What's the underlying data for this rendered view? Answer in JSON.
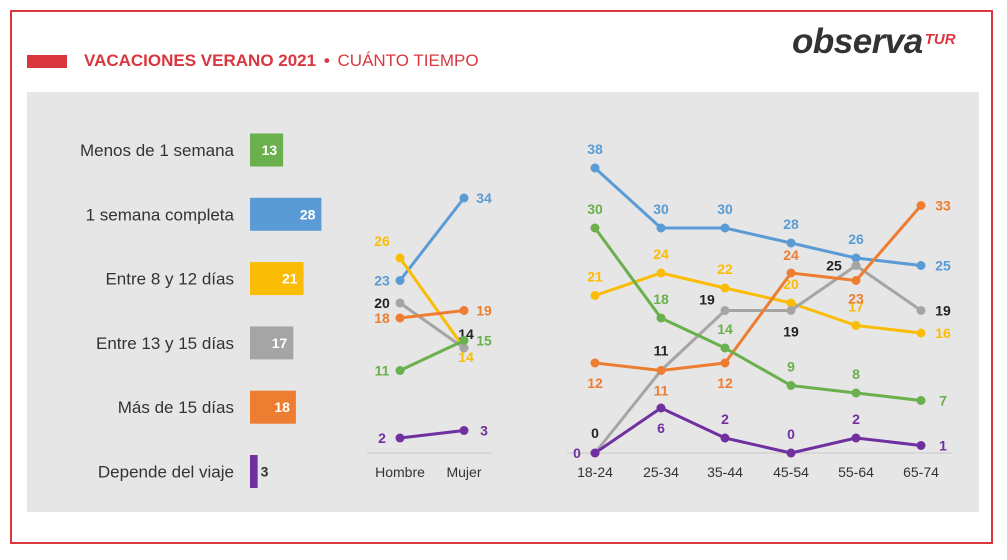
{
  "header": {
    "title_main": "VACACIONES VERANO 2021",
    "title_sep": "•",
    "title_sub": "CUÁNTO TIEMPO",
    "logo_word": "observa",
    "logo_sup": "TUR"
  },
  "chart_data": [
    {
      "type": "bar",
      "orientation": "horizontal",
      "title": "",
      "categories": [
        "Menos de 1 semana",
        "1 semana completa",
        "Entre 8 y 12 días",
        "Entre 13 y 15 días",
        "Más de 15 días",
        "Depende del viaje"
      ],
      "values": [
        13,
        28,
        21,
        17,
        18,
        3
      ],
      "colors": [
        "#6ab04c",
        "#5b9bd5",
        "#fbbc05",
        "#a5a5a5",
        "#ed7d31",
        "#7030a0"
      ]
    },
    {
      "type": "line",
      "title": "",
      "x": [
        "Hombre",
        "Mujer"
      ],
      "series": [
        {
          "name": "",
          "color": "#5b9bd5",
          "values": [
            23,
            34
          ]
        },
        {
          "name": "",
          "color": "#fbbc05",
          "values": [
            26,
            14
          ]
        },
        {
          "name": "",
          "color": "#a5a5a5",
          "values": [
            20,
            14
          ]
        },
        {
          "name": "",
          "color": "#ed7d31",
          "values": [
            18,
            19
          ]
        },
        {
          "name": "",
          "color": "#6ab04c",
          "values": [
            11,
            15
          ]
        },
        {
          "name": "",
          "color": "#7030a0",
          "values": [
            2,
            3
          ]
        }
      ],
      "ylim": [
        0,
        38
      ]
    },
    {
      "type": "line",
      "title": "",
      "x": [
        "18-24",
        "25-34",
        "35-44",
        "45-54",
        "55-64",
        "65-74"
      ],
      "series": [
        {
          "name": "",
          "color": "#5b9bd5",
          "values": [
            38,
            30,
            30,
            28,
            26,
            25
          ]
        },
        {
          "name": "",
          "color": "#fbbc05",
          "values": [
            21,
            24,
            22,
            20,
            17,
            16
          ]
        },
        {
          "name": "",
          "color": "#a5a5a5",
          "values": [
            0,
            11,
            19,
            19,
            25,
            19
          ]
        },
        {
          "name": "",
          "color": "#ed7d31",
          "values": [
            12,
            11,
            12,
            24,
            23,
            33
          ]
        },
        {
          "name": "",
          "color": "#6ab04c",
          "values": [
            30,
            18,
            14,
            9,
            8,
            7
          ]
        },
        {
          "name": "",
          "color": "#7030a0",
          "values": [
            0,
            6,
            2,
            0,
            2,
            1
          ]
        }
      ],
      "ylim": [
        0,
        38
      ]
    }
  ]
}
